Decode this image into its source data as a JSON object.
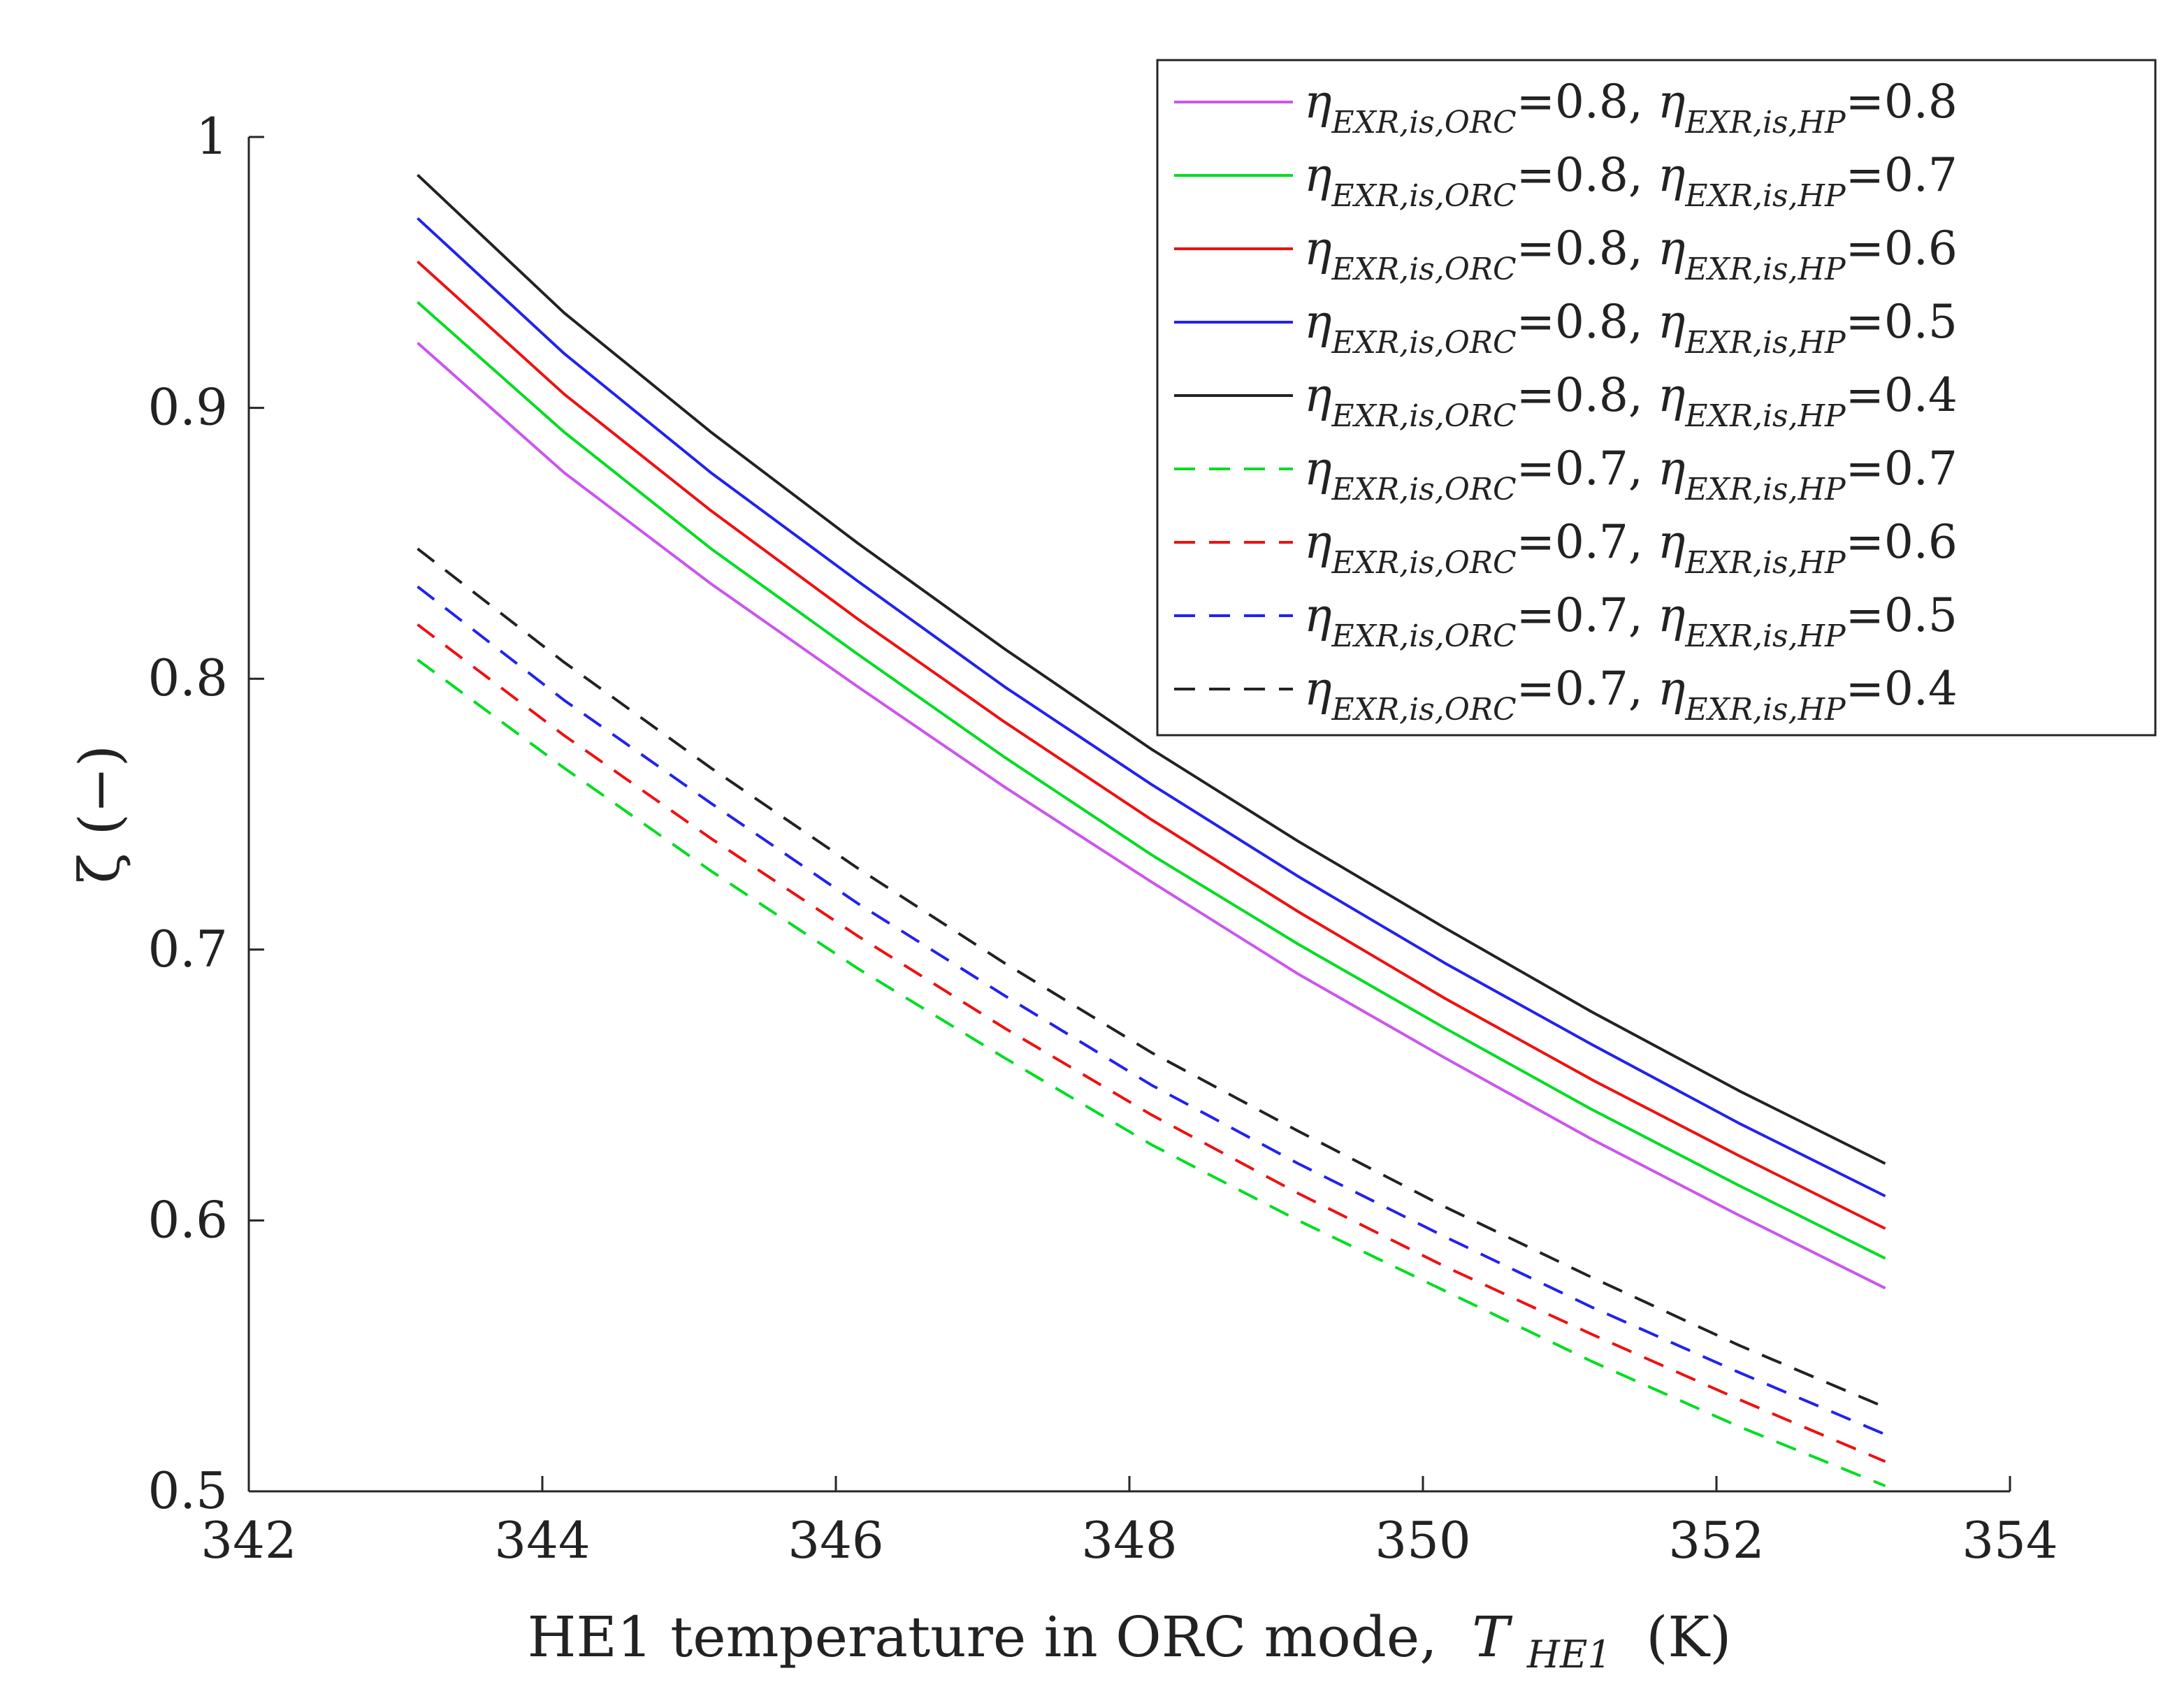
{
  "chart_data": {
    "type": "line",
    "xlabel": "HE1 temperature in ORC mode,",
    "xlabel_var": "T",
    "xlabel_sub": "HE1",
    "xlabel_unit": "(K)",
    "ylabel": "ζ (−)",
    "xlim": [
      342,
      354
    ],
    "ylim": [
      0.5,
      1.0
    ],
    "xticks": [
      "342",
      "344",
      "346",
      "348",
      "350",
      "352",
      "354"
    ],
    "yticks": [
      "0.5",
      "0.6",
      "0.7",
      "0.8",
      "0.9",
      "1"
    ],
    "legend_position": "top-right",
    "legend_template": {
      "eta": "η",
      "sub_orc": "EXR,is,ORC",
      "sub_hp": "EXR,is,HP",
      "separator": ", ",
      "equals": "="
    },
    "x": [
      343.15,
      344.15,
      345.15,
      346.15,
      347.15,
      348.15,
      349.15,
      350.15,
      351.15,
      352.15,
      353.15
    ],
    "series": [
      {
        "name": "ηEXR,is,ORC=0.8, ηEXR,is,HP=0.8",
        "orc": "0.8",
        "hp": "0.8",
        "color": "#cc55ee",
        "dashed": false,
        "values": [
          0.924,
          0.876,
          0.835,
          0.797,
          0.76,
          0.725,
          0.691,
          0.66,
          0.63,
          0.602,
          0.575
        ]
      },
      {
        "name": "ηEXR,is,ORC=0.8, ηEXR,is,HP=0.7",
        "orc": "0.8",
        "hp": "0.7",
        "color": "#00dd22",
        "dashed": false,
        "values": [
          0.939,
          0.891,
          0.848,
          0.809,
          0.771,
          0.735,
          0.702,
          0.671,
          0.641,
          0.613,
          0.586
        ]
      },
      {
        "name": "ηEXR,is,ORC=0.8, ηEXR,is,HP=0.6",
        "orc": "0.8",
        "hp": "0.6",
        "color": "#ee1111",
        "dashed": false,
        "values": [
          0.954,
          0.905,
          0.862,
          0.822,
          0.784,
          0.748,
          0.714,
          0.682,
          0.652,
          0.624,
          0.597
        ]
      },
      {
        "name": "ηEXR,is,ORC=0.8, ηEXR,is,HP=0.5",
        "orc": "0.8",
        "hp": "0.5",
        "color": "#2222ee",
        "dashed": false,
        "values": [
          0.97,
          0.92,
          0.876,
          0.836,
          0.797,
          0.761,
          0.727,
          0.695,
          0.665,
          0.636,
          0.609
        ]
      },
      {
        "name": "ηEXR,is,ORC=0.8, ηEXR,is,HP=0.4",
        "orc": "0.8",
        "hp": "0.4",
        "color": "#222222",
        "dashed": false,
        "values": [
          0.986,
          0.935,
          0.891,
          0.85,
          0.811,
          0.774,
          0.74,
          0.708,
          0.677,
          0.648,
          0.621
        ]
      },
      {
        "name": "ηEXR,is,ORC=0.7, ηEXR,is,HP=0.7",
        "orc": "0.7",
        "hp": "0.7",
        "color": "#00dd22",
        "dashed": true,
        "values": [
          0.807,
          0.767,
          0.729,
          0.693,
          0.66,
          0.628,
          0.6,
          0.574,
          0.548,
          0.524,
          0.502
        ]
      },
      {
        "name": "ηEXR,is,ORC=0.7, ηEXR,is,HP=0.6",
        "orc": "0.7",
        "hp": "0.6",
        "color": "#ee1111",
        "dashed": true,
        "values": [
          0.82,
          0.779,
          0.741,
          0.705,
          0.671,
          0.639,
          0.61,
          0.583,
          0.558,
          0.534,
          0.511
        ]
      },
      {
        "name": "ηEXR,is,ORC=0.7, ηEXR,is,HP=0.5",
        "orc": "0.7",
        "hp": "0.5",
        "color": "#2222ee",
        "dashed": true,
        "values": [
          0.834,
          0.792,
          0.754,
          0.717,
          0.683,
          0.65,
          0.621,
          0.594,
          0.568,
          0.544,
          0.521
        ]
      },
      {
        "name": "ηEXR,is,ORC=0.7, ηEXR,is,HP=0.4",
        "orc": "0.7",
        "hp": "0.4",
        "color": "#222222",
        "dashed": true,
        "values": [
          0.848,
          0.806,
          0.767,
          0.73,
          0.695,
          0.662,
          0.633,
          0.605,
          0.579,
          0.554,
          0.531
        ]
      }
    ]
  }
}
